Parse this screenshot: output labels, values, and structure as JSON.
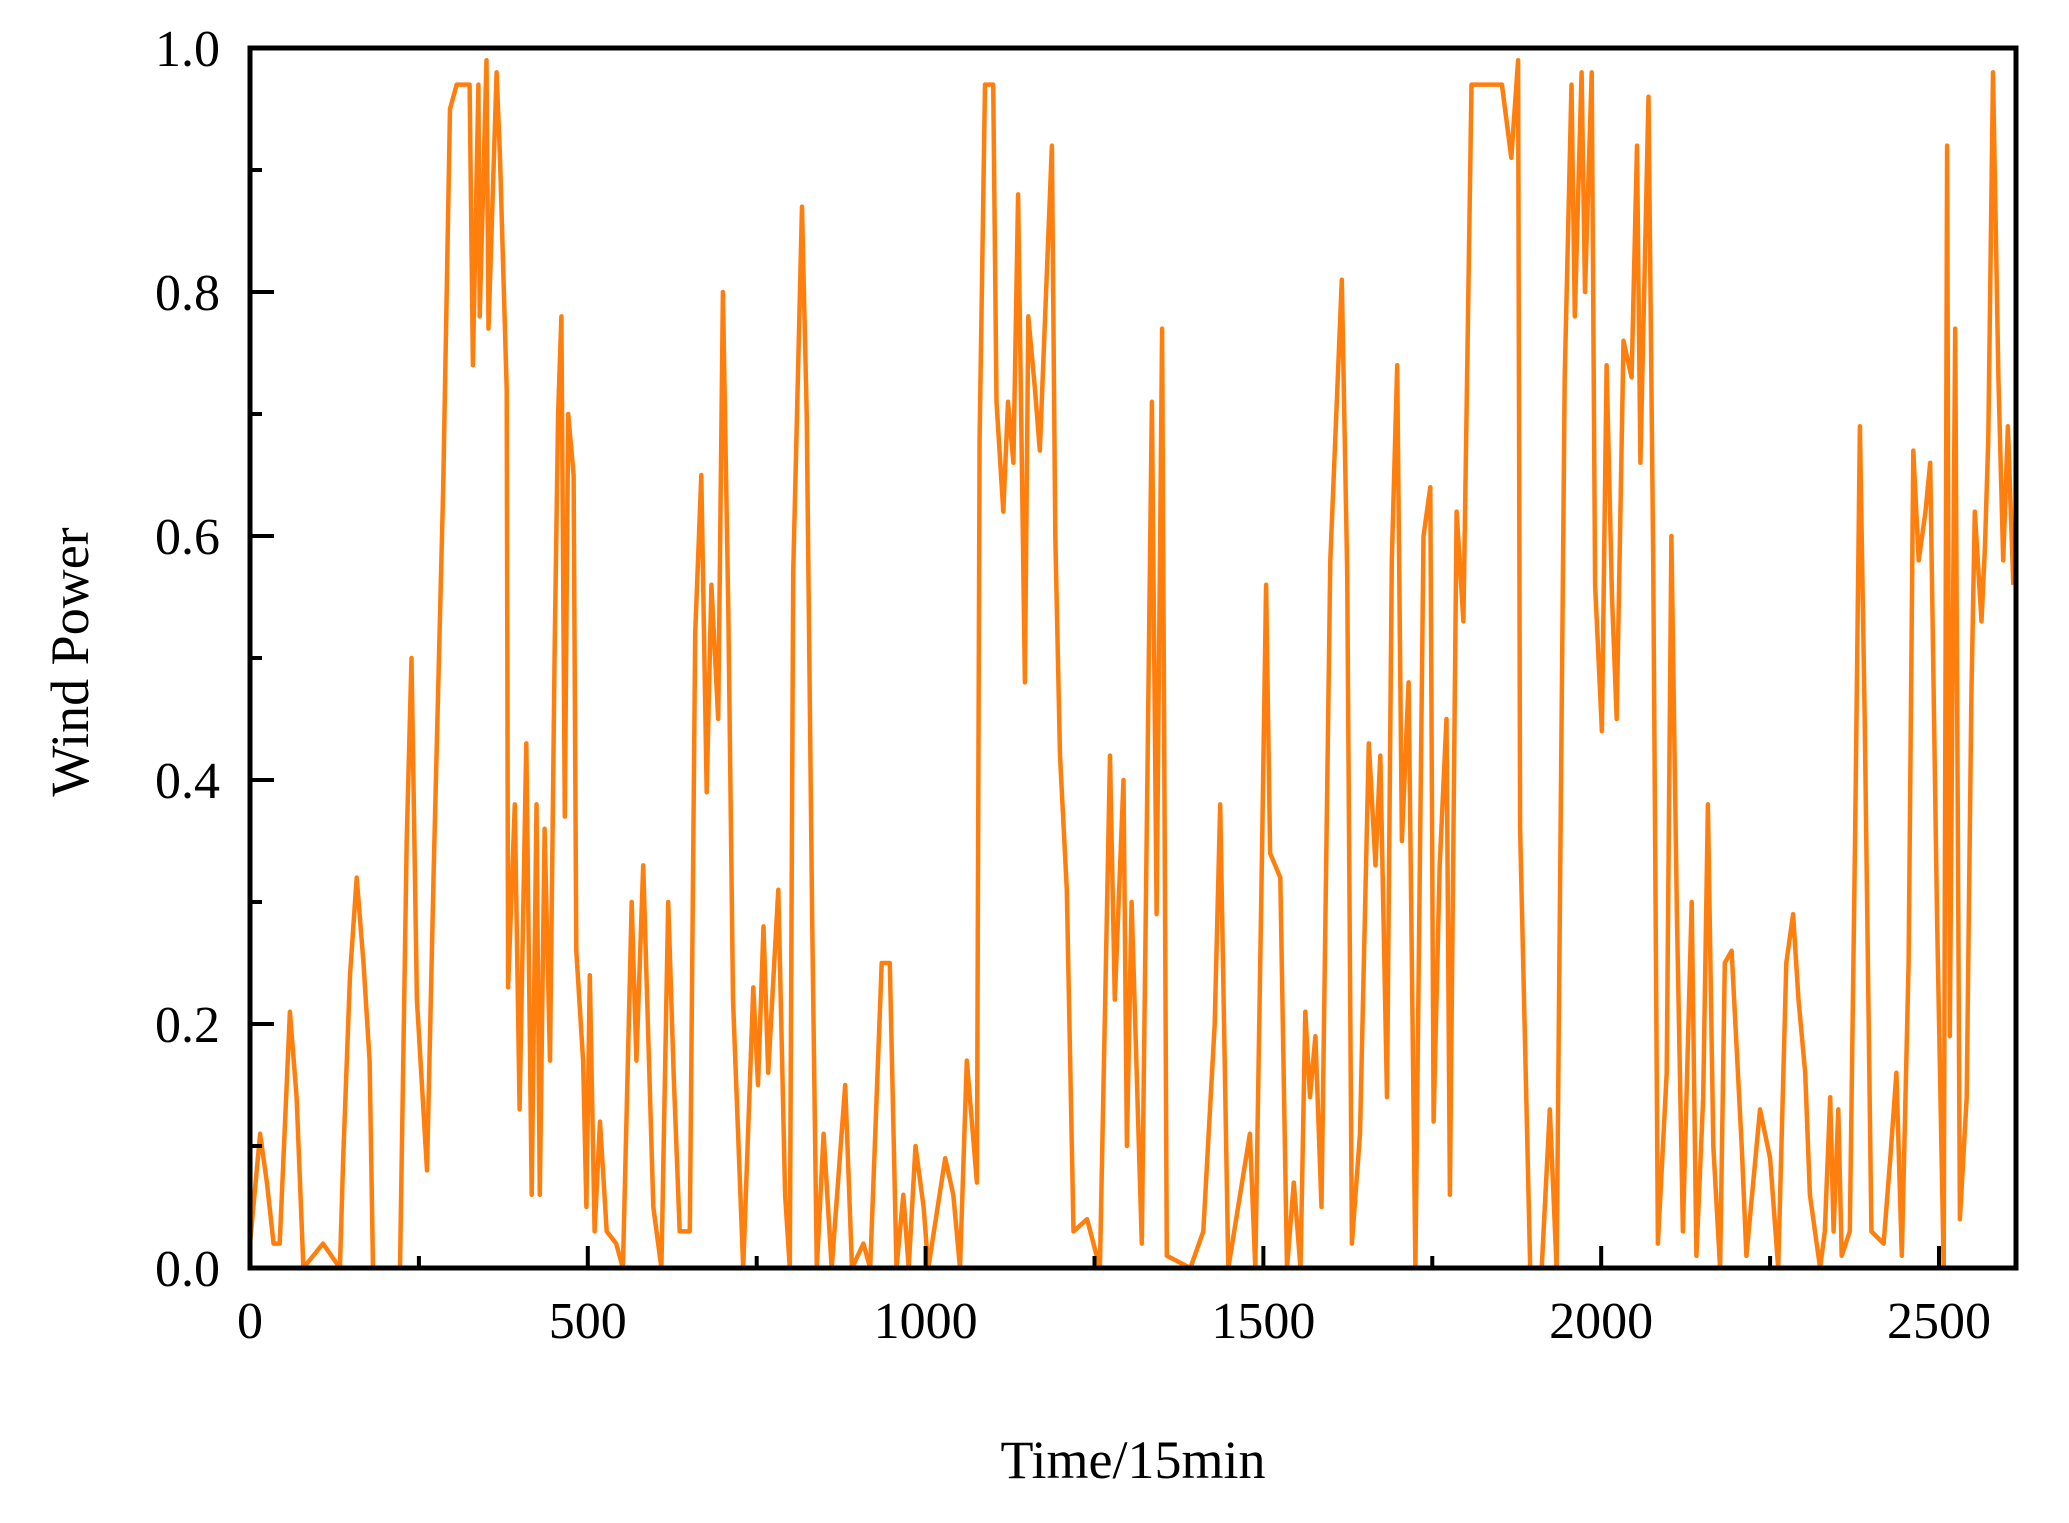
{
  "chart_data": {
    "type": "line",
    "title": "",
    "xlabel": "Time/15min",
    "ylabel": "Wind Power",
    "xlim": [
      0,
      2614
    ],
    "ylim": [
      0.0,
      1.0
    ],
    "grid": false,
    "legend": null,
    "x_ticks": [
      0,
      500,
      1000,
      1500,
      2000,
      2500
    ],
    "x_tick_labels": [
      "0",
      "500",
      "1000",
      "1500",
      "2000",
      "2500"
    ],
    "x_minor_ticks": [
      250,
      750,
      1250,
      1750,
      2250
    ],
    "y_ticks": [
      0.0,
      0.2,
      0.4,
      0.6,
      0.8,
      1.0
    ],
    "y_tick_labels": [
      "0.0",
      "0.2",
      "0.4",
      "0.6",
      "0.8",
      "1.0"
    ],
    "y_minor_ticks": [
      0.1,
      0.3,
      0.5,
      0.7,
      0.9
    ],
    "series": [
      {
        "name": "Wind Power",
        "color": "#ff7f0e",
        "x": [
          0,
          15,
          25,
          35,
          44,
          59,
          69,
          79,
          108,
          133,
          138,
          148,
          158,
          168,
          177,
          182,
          222,
          232,
          239,
          247,
          262,
          272,
          286,
          296,
          306,
          325,
          330,
          338,
          340,
          350,
          353,
          365,
          370,
          380,
          382,
          392,
          399,
          409,
          417,
          424,
          429,
          436,
          444,
          451,
          456,
          461,
          466,
          471,
          479,
          483,
          493,
          498,
          503,
          510,
          518,
          528,
          542,
          552,
          565,
          572,
          582,
          597,
          609,
          619,
          627,
          636,
          651,
          659,
          668,
          676,
          683,
          693,
          700,
          708,
          715,
          730,
          745,
          752,
          760,
          767,
          782,
          792,
          799,
          804,
          817,
          824,
          832,
          839,
          849,
          861,
          881,
          891,
          908,
          918,
          935,
          947,
          957,
          967,
          975,
          985,
          997,
          1004,
          1029,
          1041,
          1051,
          1061,
          1076,
          1080,
          1088,
          1100,
          1105,
          1115,
          1122,
          1130,
          1137,
          1147,
          1152,
          1162,
          1169,
          1187,
          1192,
          1199,
          1209,
          1219,
          1239,
          1258,
          1273,
          1280,
          1293,
          1298,
          1305,
          1320,
          1335,
          1342,
          1350,
          1357,
          1392,
          1411,
          1428,
          1436,
          1448,
          1480,
          1488,
          1498,
          1504,
          1510,
          1525,
          1535,
          1545,
          1555,
          1562,
          1569,
          1577,
          1586,
          1599,
          1616,
          1624,
          1631,
          1643,
          1656,
          1666,
          1673,
          1683,
          1690,
          1698,
          1705,
          1715,
          1725,
          1737,
          1747,
          1752,
          1761,
          1771,
          1776,
          1786,
          1796,
          1808,
          1830,
          1853,
          1867,
          1877,
          1880,
          1895,
          1912,
          1924,
          1934,
          1946,
          1956,
          1961,
          1971,
          1976,
          1986,
          1991,
          2001,
          2008,
          2016,
          2023,
          2033,
          2045,
          2053,
          2058,
          2070,
          2077,
          2084,
          2097,
          2104,
          2112,
          2121,
          2134,
          2141,
          2151,
          2158,
          2166,
          2176,
          2183,
          2193,
          2208,
          2215,
          2235,
          2250,
          2262,
          2274,
          2284,
          2292,
          2302,
          2309,
          2324,
          2331,
          2339,
          2344,
          2351,
          2356,
          2368,
          2376,
          2383,
          2390,
          2400,
          2418,
          2428,
          2437,
          2445,
          2455,
          2462,
          2470,
          2480,
          2487,
          2497,
          2507,
          2512,
          2516,
          2524,
          2531,
          2541,
          2548,
          2553,
          2563,
          2568,
          2573,
          2580,
          2588,
          2595,
          2602,
          2610
        ],
        "values": [
          0.02,
          0.11,
          0.07,
          0.02,
          0.02,
          0.21,
          0.14,
          0.0,
          0.02,
          0.0,
          0.09,
          0.24,
          0.32,
          0.25,
          0.17,
          0.0,
          0.0,
          0.35,
          0.5,
          0.22,
          0.08,
          0.33,
          0.64,
          0.95,
          0.97,
          0.97,
          0.74,
          0.97,
          0.78,
          0.99,
          0.77,
          0.98,
          0.91,
          0.72,
          0.23,
          0.38,
          0.13,
          0.43,
          0.06,
          0.38,
          0.06,
          0.36,
          0.17,
          0.51,
          0.7,
          0.78,
          0.37,
          0.7,
          0.65,
          0.26,
          0.17,
          0.05,
          0.24,
          0.03,
          0.12,
          0.03,
          0.02,
          0.0,
          0.3,
          0.17,
          0.33,
          0.05,
          0.0,
          0.3,
          0.16,
          0.03,
          0.03,
          0.52,
          0.65,
          0.39,
          0.56,
          0.45,
          0.8,
          0.54,
          0.22,
          0.0,
          0.23,
          0.15,
          0.28,
          0.16,
          0.31,
          0.06,
          0.0,
          0.57,
          0.87,
          0.7,
          0.29,
          0.0,
          0.11,
          0.0,
          0.15,
          0.0,
          0.02,
          0.0,
          0.25,
          0.25,
          0.0,
          0.06,
          0.0,
          0.1,
          0.05,
          0.0,
          0.09,
          0.06,
          0.0,
          0.17,
          0.07,
          0.68,
          0.97,
          0.97,
          0.71,
          0.62,
          0.71,
          0.66,
          0.88,
          0.48,
          0.78,
          0.72,
          0.67,
          0.92,
          0.6,
          0.42,
          0.31,
          0.03,
          0.04,
          0.0,
          0.42,
          0.22,
          0.4,
          0.1,
          0.3,
          0.02,
          0.71,
          0.29,
          0.77,
          0.01,
          0.0,
          0.03,
          0.2,
          0.38,
          0.0,
          0.11,
          0.0,
          0.34,
          0.56,
          0.34,
          0.32,
          0.0,
          0.07,
          0.0,
          0.21,
          0.14,
          0.19,
          0.05,
          0.58,
          0.81,
          0.57,
          0.02,
          0.11,
          0.43,
          0.33,
          0.42,
          0.14,
          0.58,
          0.74,
          0.35,
          0.48,
          0.0,
          0.6,
          0.64,
          0.12,
          0.33,
          0.45,
          0.06,
          0.62,
          0.53,
          0.97,
          0.97,
          0.97,
          0.91,
          0.99,
          0.36,
          0.0,
          0.0,
          0.13,
          0.0,
          0.73,
          0.97,
          0.78,
          0.98,
          0.8,
          0.98,
          0.56,
          0.44,
          0.74,
          0.55,
          0.45,
          0.76,
          0.73,
          0.92,
          0.66,
          0.96,
          0.58,
          0.02,
          0.16,
          0.6,
          0.29,
          0.03,
          0.3,
          0.01,
          0.14,
          0.38,
          0.1,
          0.0,
          0.25,
          0.26,
          0.1,
          0.01,
          0.13,
          0.09,
          0.0,
          0.25,
          0.29,
          0.22,
          0.16,
          0.06,
          0.0,
          0.03,
          0.14,
          0.03,
          0.13,
          0.01,
          0.03,
          0.36,
          0.69,
          0.45,
          0.03,
          0.02,
          0.09,
          0.16,
          0.01,
          0.25,
          0.67,
          0.58,
          0.62,
          0.66,
          0.29,
          0.0,
          0.92,
          0.19,
          0.77,
          0.04,
          0.14,
          0.47,
          0.62,
          0.53,
          0.59,
          0.68,
          0.98,
          0.73,
          0.58,
          0.69,
          0.56
        ]
      }
    ]
  },
  "style": {
    "line_color": "#ff7f0e",
    "axis_color": "#000000",
    "background": "#ffffff"
  }
}
